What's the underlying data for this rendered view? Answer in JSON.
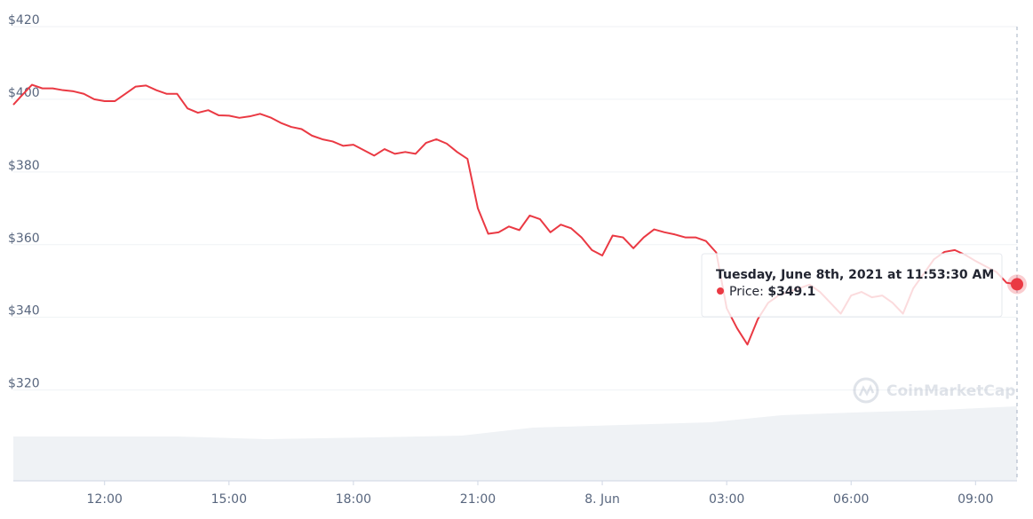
{
  "chart_data": {
    "type": "line",
    "x": [
      9.8,
      10.0,
      10.25,
      10.5,
      10.75,
      11.0,
      11.25,
      11.5,
      11.75,
      12.0,
      12.25,
      12.5,
      12.75,
      13.0,
      13.25,
      13.5,
      13.75,
      14.0,
      14.25,
      14.5,
      14.75,
      15.0,
      15.25,
      15.5,
      15.75,
      16.0,
      16.25,
      16.5,
      16.75,
      17.0,
      17.25,
      17.5,
      17.75,
      18.0,
      18.25,
      18.5,
      18.75,
      19.0,
      19.25,
      19.5,
      19.75,
      20.0,
      20.25,
      20.5,
      20.75,
      21.0,
      21.25,
      21.5,
      21.75,
      22.0,
      22.25,
      22.5,
      22.75,
      23.0,
      23.25,
      23.5,
      23.75,
      24.0,
      24.25,
      24.5,
      24.75,
      25.0,
      25.25,
      25.5,
      25.75,
      26.0,
      26.25,
      26.5,
      26.75,
      27.0,
      27.25,
      27.5,
      27.75,
      28.0,
      28.25,
      28.5,
      28.75,
      29.0,
      29.25,
      29.5,
      29.75,
      30.0,
      30.25,
      30.5,
      30.75,
      31.0,
      31.25,
      31.5,
      31.75,
      32.0,
      32.25,
      32.5,
      32.75,
      33.0,
      33.25,
      33.5,
      33.75,
      34.0
    ],
    "series": [
      {
        "color": "#ea3943",
        "values": [
          398.5,
          401,
          404,
          403,
          403,
          402.5,
          402.2,
          401.5,
          400,
          399.5,
          399.5,
          401.5,
          403.5,
          403.8,
          402.5,
          401.5,
          401.5,
          397.5,
          396.3,
          397,
          395.6,
          395.5,
          394.9,
          395.3,
          396,
          395,
          393.5,
          392.4,
          391.8,
          390,
          389,
          388.4,
          387.2,
          387.5,
          386,
          384.5,
          386.3,
          385,
          385.5,
          385,
          388,
          389,
          387.8,
          385.5,
          383.6,
          370,
          363,
          363.4,
          365,
          364,
          368,
          367,
          363.4,
          365.5,
          364.5,
          362,
          358.5,
          357,
          362.5,
          362,
          359,
          362,
          364.2,
          363.4,
          362.8,
          362,
          362,
          361,
          357.8,
          342.5,
          337,
          332.5,
          339.5,
          344,
          346,
          347,
          348,
          349,
          347,
          344,
          341,
          346,
          347,
          345.5,
          346,
          344,
          341,
          348,
          352,
          356,
          358,
          358.5,
          357.2,
          355.5,
          354,
          352.5,
          349.5,
          349.1
        ]
      }
    ],
    "xlim": [
      9.8,
      34.0
    ],
    "xticks": [
      {
        "value": 12,
        "label": "12:00"
      },
      {
        "value": 15,
        "label": "15:00"
      },
      {
        "value": 18,
        "label": "18:00"
      },
      {
        "value": 21,
        "label": "21:00"
      },
      {
        "value": 24,
        "label": "8. Jun"
      },
      {
        "value": 27,
        "label": "03:00"
      },
      {
        "value": 30,
        "label": "06:00"
      },
      {
        "value": 33,
        "label": "09:00"
      }
    ],
    "ylim": [
      295,
      420
    ],
    "yticks": [
      {
        "value": 320,
        "label": "$320"
      },
      {
        "value": 340,
        "label": "$340"
      },
      {
        "value": 360,
        "label": "$360"
      },
      {
        "value": 380,
        "label": "$380"
      },
      {
        "value": 400,
        "label": "$400"
      },
      {
        "value": 420,
        "label": "$420"
      }
    ],
    "grid": true,
    "watermark": "CoinMarketCap",
    "tooltip": {
      "title": "Tuesday, June 8th, 2021 at 11:53:30 AM",
      "label": "Price:",
      "value": 349.1,
      "value_label": "$349.1"
    }
  }
}
